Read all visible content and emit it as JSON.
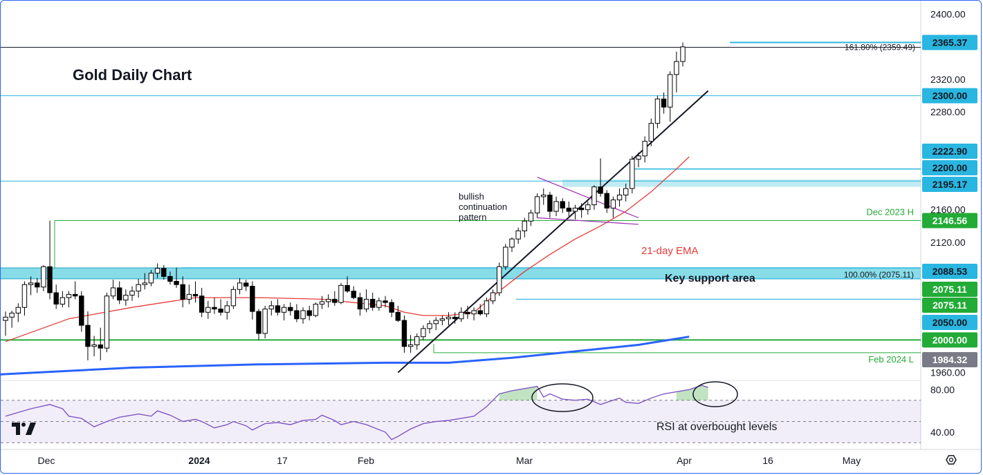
{
  "chart_data": {
    "type": "candlestick",
    "title": "Gold Daily Chart",
    "price_axis": {
      "ticks": [
        "2400.00",
        "2320.00",
        "2280.00",
        "2160.00",
        "2120.00",
        "1960.00"
      ],
      "tick_values": [
        2400,
        2320,
        2280,
        2160,
        2120,
        1960
      ],
      "range": [
        1952,
        2415
      ]
    },
    "rsi_axis": {
      "ticks": [
        "80.00",
        "40.00"
      ],
      "tick_values": [
        80,
        40
      ],
      "bands": [
        70,
        50,
        30
      ],
      "range": [
        25,
        88
      ]
    },
    "time_axis": {
      "labels": [
        "Dec",
        "2024",
        "17",
        "Feb",
        "Mar",
        "Apr",
        "16",
        "May"
      ],
      "bold_label": "2024"
    },
    "price_tags": [
      {
        "label": "2365.37",
        "value": 2365.37,
        "color": "#29b6e0",
        "text_color": "#131722"
      },
      {
        "label": "2300.00",
        "value": 2300.0,
        "color": "#29b6e0",
        "text_color": "#131722"
      },
      {
        "label": "2222.90",
        "value": 2222.9,
        "color": "#29b6e0",
        "text_color": "#131722"
      },
      {
        "label": "2200.00",
        "value": 2200.0,
        "color": "#29b6e0",
        "text_color": "#131722"
      },
      {
        "label": "2195.17",
        "value": 2195.17,
        "color": "#29b6e0",
        "text_color": "#131722"
      },
      {
        "label": "2146.56",
        "value": 2146.56,
        "color": "#22ab36",
        "text_color": "#ffffff"
      },
      {
        "label": "2088.53",
        "value": 2088.53,
        "color": "#29b6e0",
        "text_color": "#131722"
      },
      {
        "label": "2075.11",
        "value": 2075.11,
        "color": "#22ab36",
        "text_color": "#ffffff"
      },
      {
        "label": "2075.11",
        "value": 2075.11,
        "color": "#22ab36",
        "text_color": "#ffffff"
      },
      {
        "label": "2050.00",
        "value": 2050.0,
        "color": "#29b6e0",
        "text_color": "#131722"
      },
      {
        "label": "2000.00",
        "value": 2000.0,
        "color": "#22ab36",
        "text_color": "#ffffff"
      },
      {
        "label": "1984.32",
        "value": 1984.32,
        "color": "#787b86",
        "text_color": "#ffffff"
      }
    ],
    "levels": [
      {
        "name": "161.8% extension",
        "value": 2359.49,
        "color": "#131722",
        "label": "161.80% (2359.49)"
      },
      {
        "name": "2300 resistance",
        "value": 2300,
        "color": "#29b6e0"
      },
      {
        "name": "2195.17 level",
        "value": 2195.17,
        "color": "#29b6e0"
      },
      {
        "name": "Dec 2023 high",
        "value": 2146.56,
        "color": "#22ab36",
        "label": "Dec 2023 H"
      },
      {
        "name": "100% level",
        "value": 2075.11,
        "color": "#29b6e0",
        "label": "100.00% (2075.11)"
      },
      {
        "name": "2000 support",
        "value": 2000,
        "color": "#22ab36"
      },
      {
        "name": "Feb 2024 low",
        "value": 1984.32,
        "color": "#22ab36",
        "label": "Feb 2024 L"
      }
    ],
    "support_zone": {
      "low": 2075.11,
      "high": 2088.53,
      "label": "Key support area"
    },
    "annotations": {
      "pattern": [
        "bullish",
        "continuation",
        "pattern"
      ],
      "ema_label": "21-day EMA",
      "rsi_label": "RSI at overbought levels"
    },
    "candles": [
      {
        "o": 2024,
        "h": 2035,
        "l": 2005,
        "c": 2028
      },
      {
        "o": 2028,
        "h": 2036,
        "l": 2015,
        "c": 2033
      },
      {
        "o": 2033,
        "h": 2045,
        "l": 2022,
        "c": 2040
      },
      {
        "o": 2040,
        "h": 2072,
        "l": 2030,
        "c": 2068
      },
      {
        "o": 2068,
        "h": 2078,
        "l": 2055,
        "c": 2070
      },
      {
        "o": 2070,
        "h": 2076,
        "l": 2058,
        "c": 2065
      },
      {
        "o": 2065,
        "h": 2092,
        "l": 2060,
        "c": 2090
      },
      {
        "o": 2090,
        "h": 2146.56,
        "l": 2050,
        "c": 2058
      },
      {
        "o": 2058,
        "h": 2068,
        "l": 2038,
        "c": 2044
      },
      {
        "o": 2044,
        "h": 2060,
        "l": 2040,
        "c": 2052
      },
      {
        "o": 2052,
        "h": 2060,
        "l": 2040,
        "c": 2056
      },
      {
        "o": 2056,
        "h": 2072,
        "l": 2050,
        "c": 2054
      },
      {
        "o": 2054,
        "h": 2060,
        "l": 2010,
        "c": 2018
      },
      {
        "o": 2018,
        "h": 2035,
        "l": 1975,
        "c": 1992
      },
      {
        "o": 1992,
        "h": 2005,
        "l": 1980,
        "c": 1994
      },
      {
        "o": 1994,
        "h": 2015,
        "l": 1975,
        "c": 1990
      },
      {
        "o": 1990,
        "h": 2058,
        "l": 1985,
        "c": 2054
      },
      {
        "o": 2054,
        "h": 2074,
        "l": 2050,
        "c": 2064
      },
      {
        "o": 2064,
        "h": 2072,
        "l": 2044,
        "c": 2049
      },
      {
        "o": 2049,
        "h": 2062,
        "l": 2042,
        "c": 2055
      },
      {
        "o": 2055,
        "h": 2066,
        "l": 2048,
        "c": 2060
      },
      {
        "o": 2060,
        "h": 2075,
        "l": 2052,
        "c": 2068
      },
      {
        "o": 2068,
        "h": 2082,
        "l": 2062,
        "c": 2070
      },
      {
        "o": 2070,
        "h": 2086,
        "l": 2066,
        "c": 2082
      },
      {
        "o": 2082,
        "h": 2094,
        "l": 2076,
        "c": 2088
      },
      {
        "o": 2088,
        "h": 2092,
        "l": 2074,
        "c": 2078
      },
      {
        "o": 2078,
        "h": 2084,
        "l": 2068,
        "c": 2072
      },
      {
        "o": 2072,
        "h": 2089,
        "l": 2064,
        "c": 2068
      },
      {
        "o": 2068,
        "h": 2078,
        "l": 2040,
        "c": 2050
      },
      {
        "o": 2050,
        "h": 2068,
        "l": 2044,
        "c": 2056
      },
      {
        "o": 2056,
        "h": 2072,
        "l": 2046,
        "c": 2054
      },
      {
        "o": 2054,
        "h": 2064,
        "l": 2028,
        "c": 2034
      },
      {
        "o": 2034,
        "h": 2048,
        "l": 2026,
        "c": 2040
      },
      {
        "o": 2040,
        "h": 2052,
        "l": 2032,
        "c": 2038
      },
      {
        "o": 2038,
        "h": 2050,
        "l": 2030,
        "c": 2034
      },
      {
        "o": 2034,
        "h": 2048,
        "l": 2025,
        "c": 2042
      },
      {
        "o": 2042,
        "h": 2066,
        "l": 2038,
        "c": 2062
      },
      {
        "o": 2062,
        "h": 2076,
        "l": 2056,
        "c": 2070
      },
      {
        "o": 2070,
        "h": 2074,
        "l": 2060,
        "c": 2066
      },
      {
        "o": 2066,
        "h": 2072,
        "l": 2025,
        "c": 2035
      },
      {
        "o": 2035,
        "h": 2038,
        "l": 2000,
        "c": 2008
      },
      {
        "o": 2008,
        "h": 2042,
        "l": 2002,
        "c": 2038
      },
      {
        "o": 2038,
        "h": 2048,
        "l": 2030,
        "c": 2042
      },
      {
        "o": 2042,
        "h": 2050,
        "l": 2030,
        "c": 2034
      },
      {
        "o": 2034,
        "h": 2044,
        "l": 2024,
        "c": 2040
      },
      {
        "o": 2040,
        "h": 2046,
        "l": 2030,
        "c": 2036
      },
      {
        "o": 2036,
        "h": 2044,
        "l": 2022,
        "c": 2026
      },
      {
        "o": 2026,
        "h": 2040,
        "l": 2020,
        "c": 2036
      },
      {
        "o": 2036,
        "h": 2042,
        "l": 2024,
        "c": 2030
      },
      {
        "o": 2030,
        "h": 2046,
        "l": 2028,
        "c": 2044
      },
      {
        "o": 2044,
        "h": 2054,
        "l": 2038,
        "c": 2047
      },
      {
        "o": 2047,
        "h": 2056,
        "l": 2040,
        "c": 2050
      },
      {
        "o": 2050,
        "h": 2060,
        "l": 2042,
        "c": 2046
      },
      {
        "o": 2046,
        "h": 2070,
        "l": 2044,
        "c": 2067
      },
      {
        "o": 2067,
        "h": 2078,
        "l": 2058,
        "c": 2060
      },
      {
        "o": 2060,
        "h": 2066,
        "l": 2050,
        "c": 2052
      },
      {
        "o": 2052,
        "h": 2058,
        "l": 2030,
        "c": 2038
      },
      {
        "o": 2038,
        "h": 2062,
        "l": 2034,
        "c": 2050
      },
      {
        "o": 2050,
        "h": 2058,
        "l": 2036,
        "c": 2040
      },
      {
        "o": 2040,
        "h": 2052,
        "l": 2036,
        "c": 2048
      },
      {
        "o": 2048,
        "h": 2054,
        "l": 2040,
        "c": 2046
      },
      {
        "o": 2046,
        "h": 2050,
        "l": 2028,
        "c": 2034
      },
      {
        "o": 2034,
        "h": 2042,
        "l": 2022,
        "c": 2024
      },
      {
        "o": 2024,
        "h": 2030,
        "l": 1984.32,
        "c": 1992
      },
      {
        "o": 1992,
        "h": 2006,
        "l": 1984.32,
        "c": 1994
      },
      {
        "o": 1994,
        "h": 2008,
        "l": 1988,
        "c": 2004
      },
      {
        "o": 2004,
        "h": 2018,
        "l": 2000,
        "c": 2014
      },
      {
        "o": 2014,
        "h": 2024,
        "l": 2008,
        "c": 2020
      },
      {
        "o": 2020,
        "h": 2028,
        "l": 2012,
        "c": 2024
      },
      {
        "o": 2024,
        "h": 2030,
        "l": 2018,
        "c": 2026
      },
      {
        "o": 2026,
        "h": 2034,
        "l": 2018,
        "c": 2028
      },
      {
        "o": 2028,
        "h": 2034,
        "l": 2020,
        "c": 2026
      },
      {
        "o": 2026,
        "h": 2040,
        "l": 2022,
        "c": 2034
      },
      {
        "o": 2034,
        "h": 2042,
        "l": 2026,
        "c": 2032
      },
      {
        "o": 2032,
        "h": 2040,
        "l": 2024,
        "c": 2036
      },
      {
        "o": 2036,
        "h": 2044,
        "l": 2030,
        "c": 2032
      },
      {
        "o": 2032,
        "h": 2052,
        "l": 2028,
        "c": 2048
      },
      {
        "o": 2048,
        "h": 2062,
        "l": 2044,
        "c": 2058
      },
      {
        "o": 2058,
        "h": 2095,
        "l": 2054,
        "c": 2090
      },
      {
        "o": 2090,
        "h": 2118,
        "l": 2086,
        "c": 2114
      },
      {
        "o": 2114,
        "h": 2126,
        "l": 2108,
        "c": 2124
      },
      {
        "o": 2124,
        "h": 2138,
        "l": 2118,
        "c": 2134
      },
      {
        "o": 2134,
        "h": 2150,
        "l": 2126,
        "c": 2146
      },
      {
        "o": 2146,
        "h": 2160,
        "l": 2140,
        "c": 2156
      },
      {
        "o": 2156,
        "h": 2180,
        "l": 2150,
        "c": 2176
      },
      {
        "o": 2176,
        "h": 2186,
        "l": 2166,
        "c": 2178
      },
      {
        "o": 2178,
        "h": 2182,
        "l": 2150,
        "c": 2158
      },
      {
        "o": 2158,
        "h": 2176,
        "l": 2152,
        "c": 2170
      },
      {
        "o": 2170,
        "h": 2174,
        "l": 2156,
        "c": 2162
      },
      {
        "o": 2162,
        "h": 2170,
        "l": 2152,
        "c": 2158
      },
      {
        "o": 2158,
        "h": 2166,
        "l": 2148,
        "c": 2162
      },
      {
        "o": 2162,
        "h": 2168,
        "l": 2150,
        "c": 2160
      },
      {
        "o": 2160,
        "h": 2170,
        "l": 2154,
        "c": 2166
      },
      {
        "o": 2166,
        "h": 2190,
        "l": 2160,
        "c": 2188
      },
      {
        "o": 2188,
        "h": 2222.9,
        "l": 2176,
        "c": 2180
      },
      {
        "o": 2180,
        "h": 2184,
        "l": 2156,
        "c": 2162
      },
      {
        "o": 2162,
        "h": 2176,
        "l": 2150,
        "c": 2172
      },
      {
        "o": 2172,
        "h": 2186,
        "l": 2164,
        "c": 2178
      },
      {
        "o": 2178,
        "h": 2192,
        "l": 2170,
        "c": 2186
      },
      {
        "o": 2186,
        "h": 2226,
        "l": 2180,
        "c": 2222
      },
      {
        "o": 2222,
        "h": 2230,
        "l": 2212,
        "c": 2226
      },
      {
        "o": 2226,
        "h": 2250,
        "l": 2218,
        "c": 2244
      },
      {
        "o": 2244,
        "h": 2272,
        "l": 2238,
        "c": 2266
      },
      {
        "o": 2266,
        "h": 2300,
        "l": 2260,
        "c": 2296
      },
      {
        "o": 2296,
        "h": 2304,
        "l": 2278,
        "c": 2286
      },
      {
        "o": 2286,
        "h": 2330,
        "l": 2268,
        "c": 2326
      },
      {
        "o": 2326,
        "h": 2354,
        "l": 2304,
        "c": 2342
      },
      {
        "o": 2342,
        "h": 2365.37,
        "l": 2336,
        "c": 2360
      }
    ],
    "ema21": [
      [
        0,
        1998
      ],
      [
        10,
        2026
      ],
      [
        20,
        2040
      ],
      [
        30,
        2052
      ],
      [
        40,
        2052
      ],
      [
        50,
        2050
      ],
      [
        60,
        2042
      ],
      [
        63,
        2034
      ],
      [
        66,
        2030
      ],
      [
        70,
        2030
      ],
      [
        74,
        2034
      ],
      [
        78,
        2060
      ],
      [
        82,
        2084
      ],
      [
        86,
        2105
      ],
      [
        90,
        2124
      ],
      [
        94,
        2140
      ],
      [
        98,
        2158
      ],
      [
        102,
        2182
      ],
      [
        106,
        2210
      ],
      [
        108,
        2225
      ]
    ],
    "sma200": [
      [
        -10,
        1953
      ],
      [
        0,
        1958
      ],
      [
        20,
        1966
      ],
      [
        40,
        1970
      ],
      [
        60,
        1972
      ],
      [
        70,
        1972
      ],
      [
        80,
        1978
      ],
      [
        90,
        1986
      ],
      [
        100,
        1994
      ],
      [
        108,
        2004
      ]
    ],
    "trendline": [
      [
        62,
        1960
      ],
      [
        111,
        2306
      ]
    ],
    "triangle_top": [
      [
        84,
        2200
      ],
      [
        100,
        2150
      ]
    ],
    "triangle_bottom": [
      [
        84,
        2150
      ],
      [
        100,
        2142
      ]
    ],
    "rsi": [
      [
        0,
        55
      ],
      [
        4,
        62
      ],
      [
        7,
        66
      ],
      [
        9,
        62
      ],
      [
        10,
        55
      ],
      [
        12,
        53
      ],
      [
        14,
        45
      ],
      [
        16,
        50
      ],
      [
        18,
        54
      ],
      [
        21,
        57
      ],
      [
        23,
        55
      ],
      [
        24,
        60
      ],
      [
        26,
        56
      ],
      [
        27,
        53
      ],
      [
        28,
        50
      ],
      [
        30,
        52
      ],
      [
        31,
        50
      ],
      [
        33,
        44
      ],
      [
        35,
        47
      ],
      [
        36,
        50
      ],
      [
        38,
        46
      ],
      [
        39,
        42
      ],
      [
        41,
        48
      ],
      [
        43,
        49
      ],
      [
        45,
        47
      ],
      [
        47,
        51
      ],
      [
        49,
        52
      ],
      [
        50,
        56
      ],
      [
        52,
        51
      ],
      [
        53,
        47
      ],
      [
        55,
        50
      ],
      [
        57,
        47
      ],
      [
        60,
        40
      ],
      [
        61,
        33
      ],
      [
        62,
        36
      ],
      [
        64,
        43
      ],
      [
        66,
        48
      ],
      [
        68,
        50
      ],
      [
        70,
        51
      ],
      [
        72,
        53
      ],
      [
        74,
        55
      ],
      [
        76,
        64
      ],
      [
        78,
        76
      ],
      [
        80,
        79
      ],
      [
        82,
        81
      ],
      [
        84,
        83
      ],
      [
        85,
        73
      ],
      [
        86,
        76
      ],
      [
        88,
        71
      ],
      [
        90,
        70
      ],
      [
        92,
        71
      ],
      [
        94,
        66
      ],
      [
        96,
        70
      ],
      [
        97,
        72
      ],
      [
        98,
        68
      ],
      [
        100,
        67
      ],
      [
        102,
        72
      ],
      [
        104,
        76
      ],
      [
        106,
        78
      ],
      [
        108,
        80
      ],
      [
        110,
        84
      ],
      [
        111,
        82
      ]
    ],
    "rsi_overbought_zone": [
      [
        78,
        70
      ],
      [
        78,
        76
      ],
      [
        80,
        79
      ],
      [
        82,
        81
      ],
      [
        84,
        83
      ],
      [
        84,
        70
      ]
    ],
    "rsi_overbought_zone2": [
      [
        106,
        70
      ],
      [
        106,
        78
      ],
      [
        108,
        80
      ],
      [
        110,
        84
      ],
      [
        111,
        82
      ],
      [
        111,
        70
      ]
    ]
  }
}
